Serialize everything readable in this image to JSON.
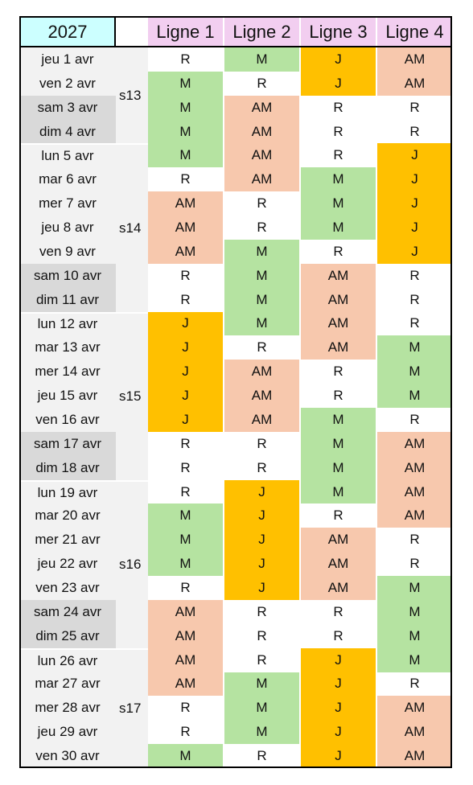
{
  "table": {
    "year": "2027",
    "columns": [
      "Ligne 1",
      "Ligne 2",
      "Ligne 3",
      "Ligne 4"
    ],
    "weeks": [
      {
        "label": "s13",
        "rows": [
          {
            "date": "jeu 1 avr",
            "cells": [
              "R",
              "M",
              "J",
              "AM"
            ]
          },
          {
            "date": "ven 2 avr",
            "cells": [
              "M",
              "R",
              "J",
              "AM"
            ]
          },
          {
            "date": "sam 3 avr",
            "weekend": true,
            "cells": [
              "M",
              "AM",
              "R",
              "R"
            ]
          },
          {
            "date": "dim 4 avr",
            "weekend": true,
            "cells": [
              "M",
              "AM",
              "R",
              "R"
            ]
          }
        ]
      },
      {
        "label": "s14",
        "rows": [
          {
            "date": "lun 5 avr",
            "cells": [
              "M",
              "AM",
              "R",
              "J"
            ]
          },
          {
            "date": "mar 6 avr",
            "cells": [
              "R",
              "AM",
              "M",
              "J"
            ]
          },
          {
            "date": "mer 7 avr",
            "cells": [
              "AM",
              "R",
              "M",
              "J"
            ]
          },
          {
            "date": "jeu 8 avr",
            "cells": [
              "AM",
              "R",
              "M",
              "J"
            ]
          },
          {
            "date": "ven 9 avr",
            "cells": [
              "AM",
              "M",
              "R",
              "J"
            ]
          },
          {
            "date": "sam 10 avr",
            "weekend": true,
            "cells": [
              "R",
              "M",
              "AM",
              "R"
            ]
          },
          {
            "date": "dim 11 avr",
            "weekend": true,
            "cells": [
              "R",
              "M",
              "AM",
              "R"
            ]
          }
        ]
      },
      {
        "label": "s15",
        "rows": [
          {
            "date": "lun 12 avr",
            "cells": [
              "J",
              "M",
              "AM",
              "R"
            ]
          },
          {
            "date": "mar 13 avr",
            "cells": [
              "J",
              "R",
              "AM",
              "M"
            ]
          },
          {
            "date": "mer 14 avr",
            "cells": [
              "J",
              "AM",
              "R",
              "M"
            ]
          },
          {
            "date": "jeu 15 avr",
            "cells": [
              "J",
              "AM",
              "R",
              "M"
            ]
          },
          {
            "date": "ven 16 avr",
            "cells": [
              "J",
              "AM",
              "M",
              "R"
            ]
          },
          {
            "date": "sam 17 avr",
            "weekend": true,
            "cells": [
              "R",
              "R",
              "M",
              "AM"
            ]
          },
          {
            "date": "dim 18 avr",
            "weekend": true,
            "cells": [
              "R",
              "R",
              "M",
              "AM"
            ]
          }
        ]
      },
      {
        "label": "s16",
        "rows": [
          {
            "date": "lun 19 avr",
            "cells": [
              "R",
              "J",
              "M",
              "AM"
            ]
          },
          {
            "date": "mar 20 avr",
            "cells": [
              "M",
              "J",
              "R",
              "AM"
            ]
          },
          {
            "date": "mer 21 avr",
            "cells": [
              "M",
              "J",
              "AM",
              "R"
            ]
          },
          {
            "date": "jeu 22 avr",
            "cells": [
              "M",
              "J",
              "AM",
              "R"
            ]
          },
          {
            "date": "ven 23 avr",
            "cells": [
              "R",
              "J",
              "AM",
              "M"
            ]
          },
          {
            "date": "sam 24 avr",
            "weekend": true,
            "cells": [
              "AM",
              "R",
              "R",
              "M"
            ]
          },
          {
            "date": "dim 25 avr",
            "weekend": true,
            "cells": [
              "AM",
              "R",
              "R",
              "M"
            ]
          }
        ]
      },
      {
        "label": "s17",
        "rows": [
          {
            "date": "lun 26 avr",
            "cells": [
              "AM",
              "R",
              "J",
              "M"
            ]
          },
          {
            "date": "mar 27 avr",
            "cells": [
              "AM",
              "M",
              "J",
              "R"
            ]
          },
          {
            "date": "mer 28 avr",
            "cells": [
              "R",
              "M",
              "J",
              "AM"
            ]
          },
          {
            "date": "jeu 29 avr",
            "cells": [
              "R",
              "M",
              "J",
              "AM"
            ]
          },
          {
            "date": "ven 30 avr",
            "cells": [
              "M",
              "R",
              "J",
              "AM"
            ]
          }
        ]
      }
    ]
  }
}
